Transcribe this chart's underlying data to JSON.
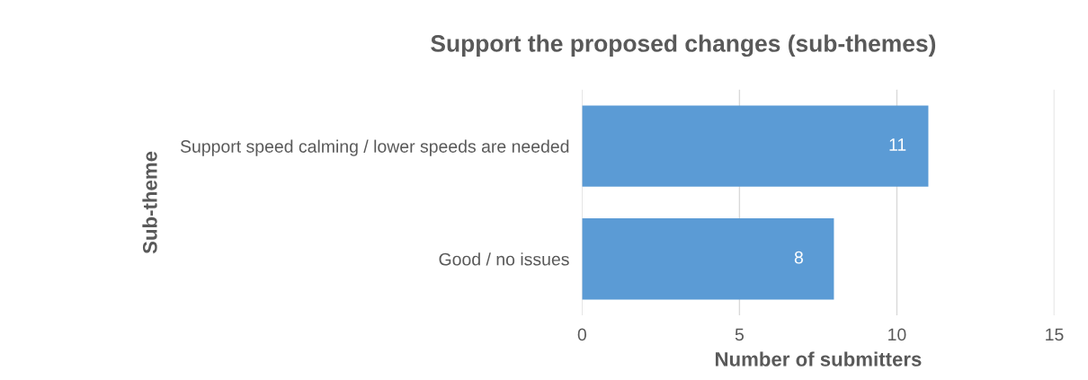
{
  "chart_data": {
    "type": "bar",
    "orientation": "horizontal",
    "title": "Support the proposed changes (sub-themes)",
    "xlabel": "Number of submitters",
    "ylabel": "Sub-theme",
    "categories": [
      "Support speed calming / lower speeds are needed",
      "Good / no issues"
    ],
    "values": [
      11,
      8
    ],
    "color": "#5b9bd5",
    "xlim": [
      0,
      15
    ],
    "xticks": [
      0,
      5,
      10,
      15
    ],
    "grid": "x",
    "data_labels": true
  }
}
